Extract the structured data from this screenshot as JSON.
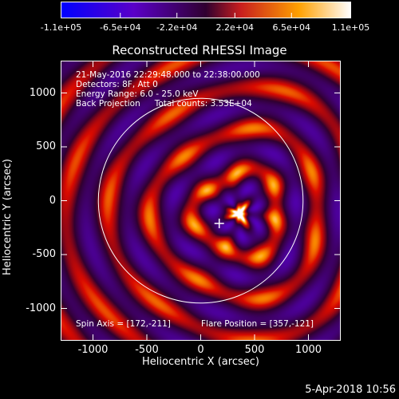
{
  "chart_data": {
    "type": "heatmap",
    "title": "Reconstructed RHESSI Image",
    "xlabel": "Heliocentric X (arcsec)",
    "ylabel": "Heliocentric Y (arcsec)",
    "xlim": [
      -1300,
      1300
    ],
    "ylim": [
      -1300,
      1300
    ],
    "x_ticks": [
      "-1000",
      "-500",
      "0",
      "500",
      "1000"
    ],
    "x_tick_values": [
      -1000,
      -500,
      0,
      500,
      1000
    ],
    "y_ticks": [
      "1000",
      "500",
      "0",
      "-500",
      "-1000"
    ],
    "y_tick_values": [
      1000,
      500,
      0,
      -500,
      -1000
    ],
    "colorbar": {
      "range": [
        -110000,
        110000
      ],
      "tick_labels": [
        "-1.1e+05",
        "-6.5e+04",
        "-2.2e+04",
        "2.2e+04",
        "6.5e+04",
        "1.1e+05"
      ],
      "tick_values": [
        -110000,
        -65000,
        -22000,
        22000,
        65000,
        110000
      ],
      "colors": [
        "#0000ff",
        "#5a00c8",
        "#500060",
        "#c81e1e",
        "#ffa000",
        "#ffffff"
      ]
    },
    "solar_disk_radius": 950,
    "flare_position": [
      357,
      -121
    ],
    "spin_axis": [
      172,
      -211
    ],
    "grid": false
  },
  "info": {
    "time_range": "21-May-2016 22:29:48.000 to 22:38:00.000",
    "detectors": "Detectors: 8F, Att 0",
    "energy_range": "Energy Range: 6.0 - 25.0 keV",
    "method": "Back Projection",
    "total_counts": "Total counts: 3.53E+04",
    "spin_axis_label": "Spin Axis = [172,-211]",
    "flare_position_label": "Flare Position = [357,-121]"
  },
  "footer": {
    "date": "5-Apr-2018 10:56"
  }
}
